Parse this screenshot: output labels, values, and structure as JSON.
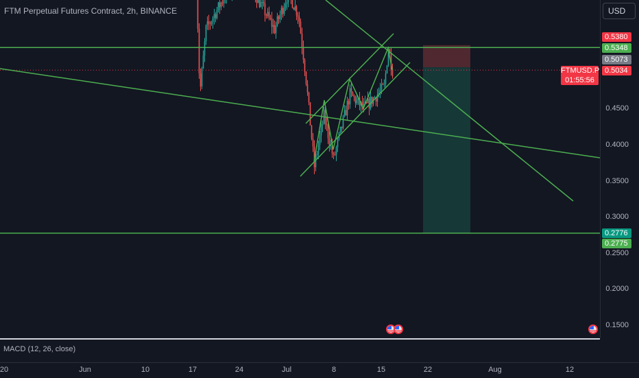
{
  "header": {
    "title": "FTM Perpetual Futures Contract, 2h, BINANCE",
    "currency": "USD"
  },
  "colors": {
    "background": "#131722",
    "trendline": "#4caf50",
    "candle_up": "#26a69a",
    "candle_down": "#ef5350",
    "stop_zone": "#5a2b33",
    "target_zone": "#173c3a",
    "current_price": "#f23645"
  },
  "price_axis": {
    "ticks": [
      "0.4500",
      "0.4000",
      "0.3500",
      "0.3000",
      "0.2500",
      "0.2000",
      "0.1500"
    ],
    "tags": [
      {
        "label": "0.5380",
        "color": "#f23645"
      },
      {
        "label": "0.5348",
        "color": "#4caf50"
      },
      {
        "label": "0.5073",
        "color": "#787b86"
      },
      {
        "label": "0.5034",
        "color": "#f23645"
      },
      {
        "label": "0.2776",
        "color": "#089981"
      },
      {
        "label": "0.2775",
        "color": "#4caf50"
      }
    ],
    "countdown": "01:55:56"
  },
  "symbol_label": "FTMUSD.P",
  "indicator": {
    "macd": "MACD (12, 26, close)"
  },
  "time_axis": {
    "labels": [
      "20",
      "Jun",
      "10",
      "17",
      "24",
      "Jul",
      "8",
      "15",
      "22",
      "Aug",
      "12"
    ]
  },
  "event_icons": [
    "us-flag-icon",
    "us-flag-icon",
    "us-flag-icon"
  ],
  "chart_data": {
    "type": "candlestick",
    "title": "FTM Perpetual Futures Contract, 2h, BINANCE",
    "horizontal_levels": [
      0.5348,
      0.2775
    ],
    "current_price": 0.5034,
    "position_entry": 0.5073,
    "position_stop": 0.538,
    "position_target": 0.2776,
    "y_range": [
      0.13,
      0.6
    ],
    "grid": false
  }
}
